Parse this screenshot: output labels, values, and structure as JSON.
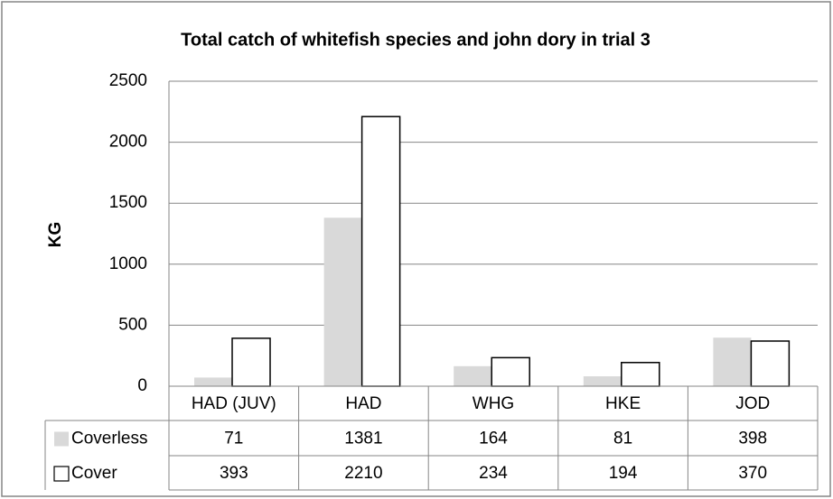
{
  "chart_data": {
    "type": "bar",
    "title": "Total catch of whitefish  species and john dory in trial 3",
    "y_label": "KG",
    "categories": [
      "HAD (JUV)",
      "HAD",
      "WHG",
      "HKE",
      "JOD"
    ],
    "series": [
      {
        "name": "Coverless",
        "color": "#d9d9d9",
        "values": [
          71,
          1381,
          164,
          81,
          398
        ]
      },
      {
        "name": "Cover",
        "color": "#ffffff",
        "values": [
          393,
          2210,
          234,
          194,
          370
        ]
      }
    ],
    "ylim": [
      0,
      2500
    ],
    "yticks": [
      0,
      500,
      1000,
      1500,
      2000,
      2500
    ],
    "grid": true
  }
}
